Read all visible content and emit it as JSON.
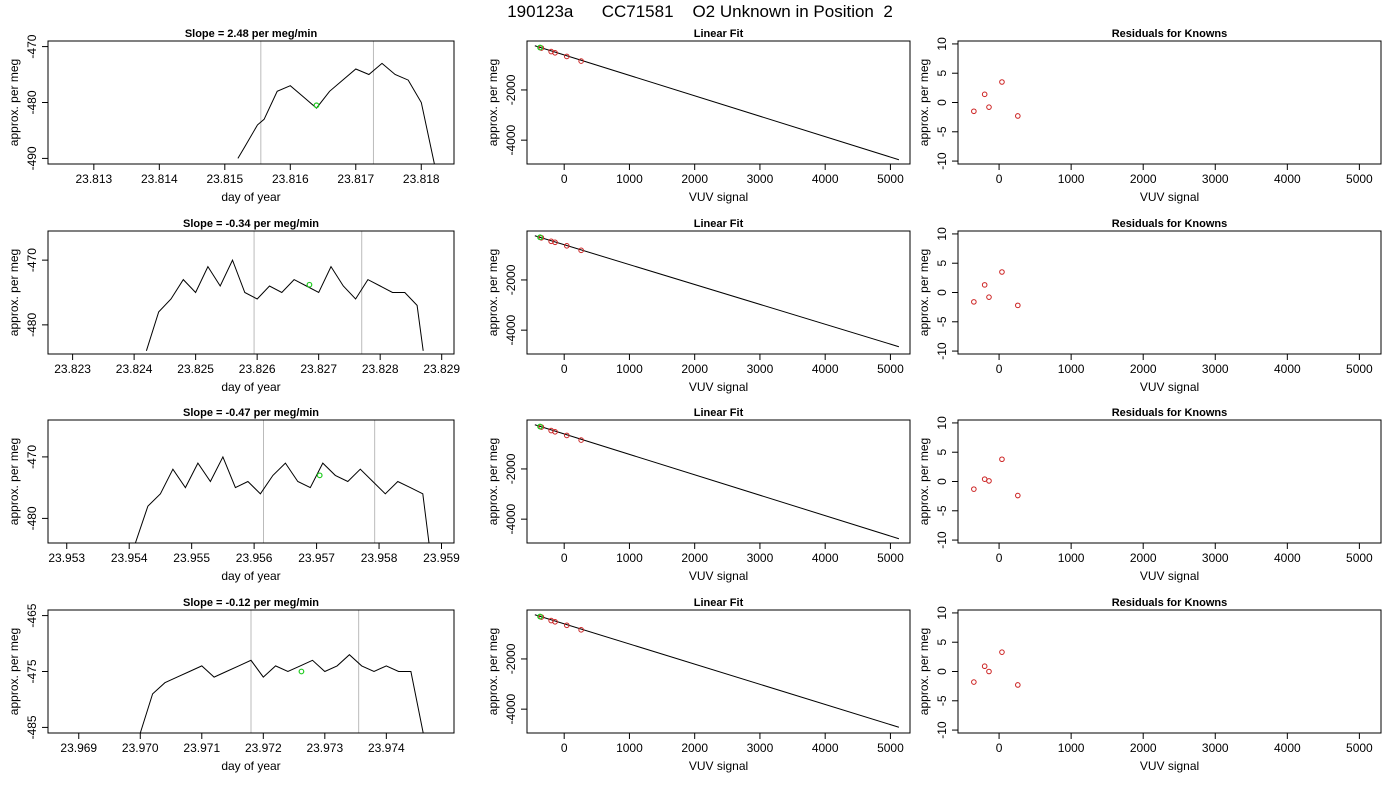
{
  "suptitle": "190123a      CC71581    O2 Unknown in Position  2",
  "colors": {
    "trace": "#000000",
    "marker": "#22cc22",
    "residual": "#cc2222",
    "vline": "#bbbbbb",
    "frame": "#000000"
  },
  "chart_data": [
    {
      "type": "line",
      "title": "Slope =  2.48  per meg/min",
      "xlabel": "day of year",
      "ylabel": "approx. per meg",
      "xlim": [
        23.8123,
        23.8185
      ],
      "ylim": [
        -491,
        -469
      ],
      "xticks": [
        23.813,
        23.814,
        23.815,
        23.816,
        23.817,
        23.818
      ],
      "xticklabels": [
        "23.813",
        "23.814",
        "23.815",
        "23.816",
        "23.817",
        "23.818"
      ],
      "yticks": [
        -470,
        -480,
        -490
      ],
      "yticklabels": [
        "-470",
        "-480",
        "-490"
      ],
      "series": [
        {
          "x": [
            23.8152,
            23.8153,
            23.8155,
            23.8156,
            23.8158,
            23.816,
            23.8162,
            23.8164,
            23.8166,
            23.8168,
            23.817,
            23.8172,
            23.8174,
            23.8176,
            23.8178,
            23.818,
            23.8182
          ],
          "y": [
            -490,
            -488,
            -484,
            -483,
            -478,
            -477,
            -479,
            -481,
            -478,
            -476,
            -474,
            -475,
            -473,
            -475,
            -476,
            -480,
            -491
          ]
        }
      ],
      "vlines": [
        23.81555,
        23.81727
      ],
      "highlight": {
        "x": 23.8164,
        "y": -480.5
      }
    },
    {
      "type": "line",
      "title": "Slope =  -0.34  per meg/min",
      "xlabel": "day of year",
      "ylabel": "approx. per meg",
      "xlim": [
        23.8226,
        23.8292
      ],
      "ylim": [
        -484.5,
        -465.5
      ],
      "xticks": [
        23.823,
        23.824,
        23.825,
        23.826,
        23.827,
        23.828,
        23.829
      ],
      "xticklabels": [
        "23.823",
        "23.824",
        "23.825",
        "23.826",
        "23.827",
        "23.828",
        "23.829"
      ],
      "yticks": [
        -470,
        -480
      ],
      "yticklabels": [
        "-470",
        "-480"
      ],
      "series": [
        {
          "x": [
            23.8242,
            23.8244,
            23.8246,
            23.8248,
            23.825,
            23.8252,
            23.8254,
            23.8256,
            23.8258,
            23.826,
            23.8262,
            23.8264,
            23.8266,
            23.8268,
            23.827,
            23.8272,
            23.8274,
            23.8276,
            23.8278,
            23.828,
            23.8282,
            23.8284,
            23.8286,
            23.8287
          ],
          "y": [
            -484,
            -478,
            -476,
            -473,
            -475,
            -471,
            -474,
            -470,
            -475,
            -476,
            -474,
            -475,
            -473,
            -474,
            -475,
            -471,
            -474,
            -476,
            -473,
            -474,
            -475,
            -475,
            -477,
            -484
          ]
        }
      ],
      "vlines": [
        23.82595,
        23.8277
      ],
      "highlight": {
        "x": 23.82685,
        "y": -473.8
      }
    },
    {
      "type": "line",
      "title": "Slope =  -0.47  per meg/min",
      "xlabel": "day of year",
      "ylabel": "approx. per meg",
      "xlim": [
        23.9527,
        23.9592
      ],
      "ylim": [
        -484,
        -464
      ],
      "xticks": [
        23.953,
        23.954,
        23.955,
        23.956,
        23.957,
        23.958,
        23.959
      ],
      "xticklabels": [
        "23.953",
        "23.954",
        "23.955",
        "23.956",
        "23.957",
        "23.958",
        "23.959"
      ],
      "yticks": [
        -470,
        -480
      ],
      "yticklabels": [
        "-470",
        "-480"
      ],
      "series": [
        {
          "x": [
            23.9541,
            23.9543,
            23.9545,
            23.9547,
            23.9549,
            23.9551,
            23.9553,
            23.9555,
            23.9557,
            23.9559,
            23.9561,
            23.9563,
            23.9565,
            23.9567,
            23.9569,
            23.9571,
            23.9573,
            23.9575,
            23.9577,
            23.9579,
            23.9581,
            23.9583,
            23.9585,
            23.9587,
            23.9588
          ],
          "y": [
            -484,
            -478,
            -476,
            -472,
            -475,
            -471,
            -474,
            -470,
            -475,
            -474,
            -476,
            -473,
            -471,
            -474,
            -475,
            -471,
            -473,
            -474,
            -472,
            -474,
            -476,
            -474,
            -475,
            -476,
            -484
          ]
        }
      ],
      "vlines": [
        23.95615,
        23.95793
      ],
      "highlight": {
        "x": 23.95705,
        "y": -473.0
      }
    },
    {
      "type": "line",
      "title": "Slope =  -0.12  per meg/min",
      "xlabel": "day of year",
      "ylabel": "approx. per meg",
      "xlim": [
        23.9685,
        23.9751
      ],
      "ylim": [
        -486,
        -464
      ],
      "xticks": [
        23.969,
        23.97,
        23.971,
        23.972,
        23.973,
        23.974
      ],
      "xticklabels": [
        "23.969",
        "23.970",
        "23.971",
        "23.972",
        "23.973",
        "23.974"
      ],
      "yticks": [
        -465,
        -475,
        -485
      ],
      "yticklabels": [
        "-465",
        "-475",
        "-485"
      ],
      "series": [
        {
          "x": [
            23.97,
            23.9702,
            23.9704,
            23.9706,
            23.9708,
            23.971,
            23.9712,
            23.9714,
            23.9716,
            23.9718,
            23.972,
            23.9722,
            23.9724,
            23.9726,
            23.9728,
            23.973,
            23.9732,
            23.9734,
            23.9736,
            23.9738,
            23.974,
            23.9742,
            23.9744,
            23.9746
          ],
          "y": [
            -486,
            -479,
            -477,
            -476,
            -475,
            -474,
            -476,
            -475,
            -474,
            -473,
            -476,
            -474,
            -475,
            -474,
            -473,
            -475,
            -474,
            -472,
            -474,
            -475,
            -474,
            -475,
            -475,
            -486
          ]
        }
      ],
      "vlines": [
        23.9718,
        23.97355
      ],
      "highlight": {
        "x": 23.97262,
        "y": -475.0
      }
    },
    {
      "type": "scatter",
      "title": "Linear Fit",
      "xlabel": "VUV signal",
      "ylabel": "approx. per meg",
      "xlim": [
        -570,
        5300
      ],
      "ylim": [
        -4950,
        -50
      ],
      "xticks": [
        0,
        1000,
        2000,
        3000,
        4000,
        5000
      ],
      "xticklabels": [
        "0",
        "1000",
        "2000",
        "3000",
        "4000",
        "5000"
      ],
      "yticks": [
        -2000,
        -4000
      ],
      "yticklabels": [
        "-2000",
        "-4000"
      ],
      "fit_line": {
        "x": [
          -450,
          5130
        ],
        "y": [
          -240,
          -4780
        ]
      },
      "points": {
        "x": [
          -350,
          -200,
          -140,
          40,
          260
        ],
        "y": [
          -330,
          -470,
          -520,
          -665,
          -850
        ]
      },
      "highlight": {
        "x": -370,
        "y": -310
      }
    },
    {
      "type": "scatter",
      "title": "Linear Fit",
      "xlabel": "VUV signal",
      "ylabel": "approx. per meg",
      "xlim": [
        -570,
        5300
      ],
      "ylim": [
        -4950,
        -50
      ],
      "xticks": [
        0,
        1000,
        2000,
        3000,
        4000,
        5000
      ],
      "xticklabels": [
        "0",
        "1000",
        "2000",
        "3000",
        "4000",
        "5000"
      ],
      "yticks": [
        -2000,
        -4000
      ],
      "yticklabels": [
        "-2000",
        "-4000"
      ],
      "fit_line": {
        "x": [
          -450,
          5130
        ],
        "y": [
          -240,
          -4660
        ]
      },
      "points": {
        "x": [
          -350,
          -200,
          -140,
          40,
          260
        ],
        "y": [
          -320,
          -460,
          -500,
          -640,
          -820
        ]
      },
      "highlight": {
        "x": -370,
        "y": -300
      }
    },
    {
      "type": "scatter",
      "title": "Linear Fit",
      "xlabel": "VUV signal",
      "ylabel": "approx. per meg",
      "xlim": [
        -570,
        5300
      ],
      "ylim": [
        -4950,
        -50
      ],
      "xticks": [
        0,
        1000,
        2000,
        3000,
        4000,
        5000
      ],
      "xticklabels": [
        "0",
        "1000",
        "2000",
        "3000",
        "4000",
        "5000"
      ],
      "yticks": [
        -2000,
        -4000
      ],
      "yticklabels": [
        "-2000",
        "-4000"
      ],
      "fit_line": {
        "x": [
          -450,
          5130
        ],
        "y": [
          -240,
          -4780
        ]
      },
      "points": {
        "x": [
          -350,
          -200,
          -140,
          40,
          260
        ],
        "y": [
          -330,
          -470,
          -520,
          -665,
          -850
        ]
      },
      "highlight": {
        "x": -370,
        "y": -310
      }
    },
    {
      "type": "scatter",
      "title": "Linear Fit",
      "xlabel": "VUV signal",
      "ylabel": "approx. per meg",
      "xlim": [
        -570,
        5300
      ],
      "ylim": [
        -4950,
        -50
      ],
      "xticks": [
        0,
        1000,
        2000,
        3000,
        4000,
        5000
      ],
      "xticklabels": [
        "0",
        "1000",
        "2000",
        "3000",
        "4000",
        "5000"
      ],
      "yticks": [
        -2000,
        -4000
      ],
      "yticklabels": [
        "-2000",
        "-4000"
      ],
      "fit_line": {
        "x": [
          -450,
          5130
        ],
        "y": [
          -240,
          -4720
        ]
      },
      "points": {
        "x": [
          -350,
          -200,
          -140,
          40,
          260
        ],
        "y": [
          -330,
          -470,
          -520,
          -660,
          -840
        ]
      },
      "highlight": {
        "x": -370,
        "y": -310
      }
    },
    {
      "type": "scatter",
      "title": "Residuals for Knowns",
      "xlabel": "VUV signal",
      "ylabel": "approx. per meg",
      "xlim": [
        -570,
        5300
      ],
      "ylim": [
        -10.5,
        10.5
      ],
      "xticks": [
        0,
        1000,
        2000,
        3000,
        4000,
        5000
      ],
      "xticklabels": [
        "0",
        "1000",
        "2000",
        "3000",
        "4000",
        "5000"
      ],
      "yticks": [
        10,
        5,
        0,
        -5,
        -10
      ],
      "yticklabels": [
        "10",
        "5",
        "0",
        "-5",
        "-10"
      ],
      "points": {
        "x": [
          -350,
          -200,
          -140,
          40,
          260
        ],
        "y": [
          -1.5,
          1.4,
          -0.8,
          3.5,
          -2.3
        ]
      }
    },
    {
      "type": "scatter",
      "title": "Residuals for Knowns",
      "xlabel": "VUV signal",
      "ylabel": "approx. per meg",
      "xlim": [
        -570,
        5300
      ],
      "ylim": [
        -10.5,
        10.5
      ],
      "xticks": [
        0,
        1000,
        2000,
        3000,
        4000,
        5000
      ],
      "xticklabels": [
        "0",
        "1000",
        "2000",
        "3000",
        "4000",
        "5000"
      ],
      "yticks": [
        10,
        5,
        0,
        -5,
        -10
      ],
      "yticklabels": [
        "10",
        "5",
        "0",
        "-5",
        "-10"
      ],
      "points": {
        "x": [
          -350,
          -200,
          -140,
          40,
          260
        ],
        "y": [
          -1.6,
          1.3,
          -0.8,
          3.5,
          -2.2
        ]
      }
    },
    {
      "type": "scatter",
      "title": "Residuals for Knowns",
      "xlabel": "VUV signal",
      "ylabel": "approx. per meg",
      "xlim": [
        -570,
        5300
      ],
      "ylim": [
        -10.5,
        10.5
      ],
      "xticks": [
        0,
        1000,
        2000,
        3000,
        4000,
        5000
      ],
      "xticklabels": [
        "0",
        "1000",
        "2000",
        "3000",
        "4000",
        "5000"
      ],
      "yticks": [
        10,
        5,
        0,
        -5,
        -10
      ],
      "yticklabels": [
        "10",
        "5",
        "0",
        "-5",
        "-10"
      ],
      "points": {
        "x": [
          -350,
          -200,
          -140,
          40,
          260
        ],
        "y": [
          -1.3,
          0.4,
          0.1,
          3.8,
          -2.4
        ]
      }
    },
    {
      "type": "scatter",
      "title": "Residuals for Knowns",
      "xlabel": "VUV signal",
      "ylabel": "approx. per meg",
      "xlim": [
        -570,
        5300
      ],
      "ylim": [
        -10.5,
        10.5
      ],
      "xticks": [
        0,
        1000,
        2000,
        3000,
        4000,
        5000
      ],
      "xticklabels": [
        "0",
        "1000",
        "2000",
        "3000",
        "4000",
        "5000"
      ],
      "yticks": [
        10,
        5,
        0,
        -5,
        -10
      ],
      "yticklabels": [
        "10",
        "5",
        "0",
        "-5",
        "-10"
      ],
      "points": {
        "x": [
          -350,
          -200,
          -140,
          40,
          260
        ],
        "y": [
          -1.8,
          0.9,
          0.0,
          3.3,
          -2.3
        ]
      }
    }
  ]
}
